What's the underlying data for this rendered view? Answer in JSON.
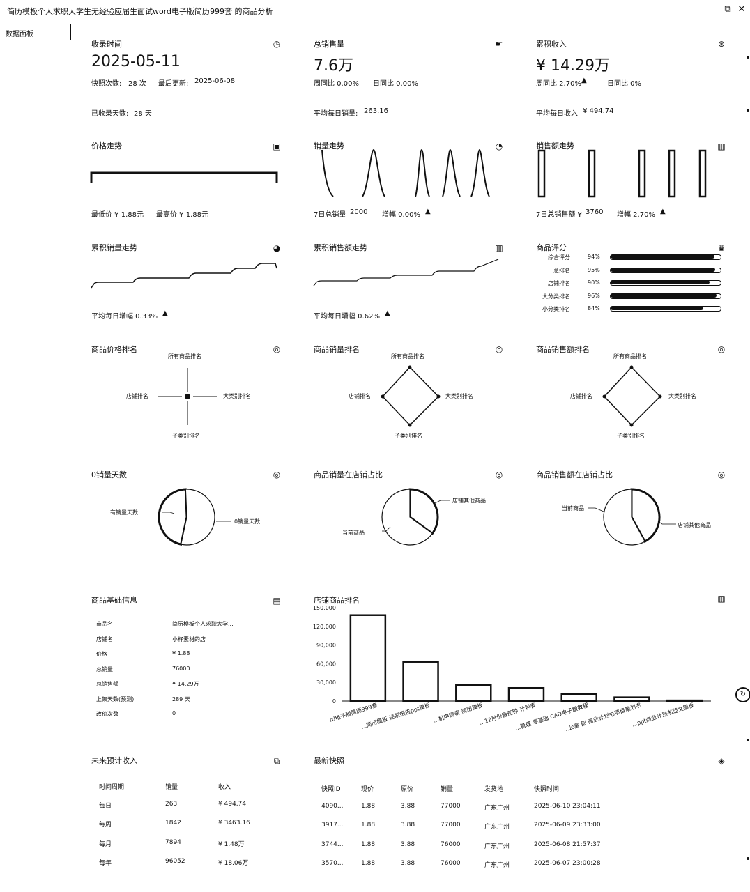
{
  "window": {
    "title": "简历模板个人求职大学生无经验应届生面试word电子版简历999套 的商品分析"
  },
  "sidebar": {
    "items": [
      {
        "label": "数据面板"
      }
    ]
  },
  "cards": {
    "collect": {
      "title": "收录时间",
      "value": "2025-05-11",
      "snap_label": "快照次数:",
      "snap_value": "28 次",
      "update_label": "最后更新:",
      "update_value": "2025-06-08",
      "days_label": "已收录天数:",
      "days_value": "28 天"
    },
    "sales": {
      "title": "总销售量",
      "value": "7.6万",
      "wow": "周同比 0.00%",
      "dod": "日同比 0.00%",
      "avg_label": "平均每日销量:",
      "avg_value": "263.16"
    },
    "revenue": {
      "title": "累积收入",
      "value": "¥ 14.29万",
      "wow": "周同比 2.70%",
      "dod": "日同比 0%",
      "avg_label": "平均每日收入",
      "avg_value": "¥ 494.74"
    },
    "price_trend": {
      "title": "价格走势",
      "min_label": "最低价 ¥ 1.88元",
      "max_label": "最高价 ¥ 1.88元"
    },
    "sales_trend": {
      "title": "销量走势",
      "total_label": "7日总销量",
      "total_value": "2000",
      "growth": "增幅 0.00%"
    },
    "revenue_trend": {
      "title": "销售额走势",
      "total_label": "7日总销售额 ¥",
      "total_value": "3760",
      "growth": "增幅 2.70%"
    },
    "cum_sales": {
      "title": "累积销量走势",
      "avg_growth": "平均每日增幅 0.33%"
    },
    "cum_revenue": {
      "title": "累积销售额走势",
      "avg_growth": "平均每日增幅 0.62%"
    },
    "score": {
      "title": "商品评分",
      "items": [
        {
          "label": "综合评分",
          "value": "94%",
          "pct": 94
        },
        {
          "label": "总排名",
          "value": "95%",
          "pct": 95
        },
        {
          "label": "店铺排名",
          "value": "90%",
          "pct": 90
        },
        {
          "label": "大分类排名",
          "value": "96%",
          "pct": 96
        },
        {
          "label": "小分类排名",
          "value": "84%",
          "pct": 84
        }
      ]
    },
    "price_rank": {
      "title": "商品价格排名",
      "top": "所有商品排名",
      "right": "大类别排名",
      "bottom": "子类别排名",
      "left": "店铺排名"
    },
    "sales_rank": {
      "title": "商品销量排名",
      "top": "所有商品排名",
      "right": "大类别排名",
      "bottom": "子类别排名",
      "left": "店铺排名"
    },
    "revenue_rank": {
      "title": "商品销售额排名",
      "top": "所有商品排名",
      "right": "大类别排名",
      "bottom": "子类别排名",
      "left": "店铺排名"
    },
    "zero_days": {
      "title": "0销量天数",
      "label_a": "有销量天数",
      "label_b": "0销量天数"
    },
    "sales_share": {
      "title": "商品销量在店铺占比",
      "label_a": "店铺其他商品",
      "label_b": "当前商品"
    },
    "revenue_share": {
      "title": "商品销售额在店铺占比",
      "label_a": "当前商品",
      "label_b": "店铺其他商品"
    },
    "basic": {
      "title": "商品基础信息",
      "rows": [
        {
          "k": "商品名",
          "v": "简历模板个人求职大学..."
        },
        {
          "k": "店铺名",
          "v": "小籽素材的店"
        },
        {
          "k": "价格",
          "v": "¥ 1.88"
        },
        {
          "k": "总销量",
          "v": "76000"
        },
        {
          "k": "总销售额",
          "v": "¥ 14.29万"
        },
        {
          "k": "上架天数(预测)",
          "v": "289 天"
        },
        {
          "k": "改价次数",
          "v": "0"
        }
      ]
    },
    "store_rank": {
      "title": "店铺商品排名"
    },
    "forecast": {
      "title": "未来预计收入",
      "headers": [
        "时间周期",
        "销量",
        "收入"
      ],
      "rows": [
        [
          "每日",
          "263",
          "¥ 494.74"
        ],
        [
          "每周",
          "1842",
          "¥ 3463.16"
        ],
        [
          "每月",
          "7894",
          "¥ 1.48万"
        ],
        [
          "每年",
          "96052",
          "¥ 18.06万"
        ]
      ]
    },
    "snapshots": {
      "title": "最新快照",
      "headers": [
        "快照ID",
        "现价",
        "原价",
        "销量",
        "发货地",
        "快照时间"
      ],
      "rows": [
        [
          "4090...",
          "1.88",
          "3.88",
          "77000",
          "广东广州",
          "2025-06-10 23:04:11"
        ],
        [
          "3917...",
          "1.88",
          "3.88",
          "77000",
          "广东广州",
          "2025-06-09 23:33:00"
        ],
        [
          "3744...",
          "1.88",
          "3.88",
          "76000",
          "广东广州",
          "2025-06-08 21:57:37"
        ],
        [
          "3570...",
          "1.88",
          "3.88",
          "76000",
          "广东广州",
          "2025-06-07 23:00:28"
        ]
      ]
    }
  },
  "chart_data": [
    {
      "type": "line",
      "chart": "price_trend",
      "values": [
        1.88,
        1.88,
        1.88,
        1.88,
        1.88,
        1.88,
        1.88
      ]
    },
    {
      "type": "bar",
      "chart": "store_rank",
      "categories": [
        "rd电子版简历999套",
        "...简历模板 述职报告ppt模板",
        "...机申请表 简历模板",
        "...12月份番茄钟 计划表",
        "...管理 零基础 CAD电子版教程",
        "...公寓 部 商业计划书项目策划书",
        "...ppt商业计划书范文模板"
      ],
      "values": [
        138000,
        63000,
        26000,
        21000,
        11000,
        6000,
        1000
      ],
      "yticks": [
        "0",
        "30,000",
        "60,000",
        "90,000",
        "120,000",
        "150,000"
      ],
      "ylim": [
        0,
        150000
      ]
    },
    {
      "type": "pie",
      "chart": "zero_days",
      "labels": [
        "有销量天数",
        "0销量天数"
      ],
      "values": [
        46,
        54
      ]
    },
    {
      "type": "pie",
      "chart": "sales_share",
      "labels": [
        "店铺其他商品",
        "当前商品"
      ],
      "values": [
        35,
        65
      ]
    },
    {
      "type": "pie",
      "chart": "revenue_share",
      "labels": [
        "当前商品",
        "店铺其他商品"
      ],
      "values": [
        42,
        58
      ]
    }
  ]
}
